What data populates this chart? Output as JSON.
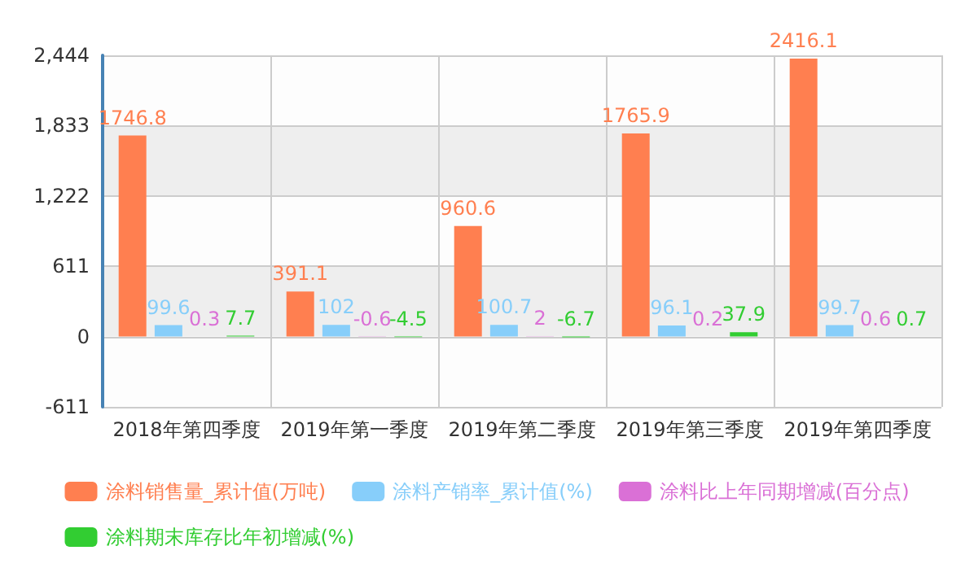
{
  "chart_data": {
    "type": "bar",
    "categories": [
      "2018年第四季度",
      "2019年第一季度",
      "2019年第二季度",
      "2019年第三季度",
      "2019年第四季度"
    ],
    "series": [
      {
        "name": "涂料销售量_累计值(万吨)",
        "color": "#ff7f50",
        "values": [
          1746.8,
          391.1,
          960.6,
          1765.9,
          2416.1
        ]
      },
      {
        "name": "涂料产销率_累计值(%)",
        "color": "#87cefa",
        "values": [
          99.6,
          102,
          100.7,
          96.1,
          99.7
        ]
      },
      {
        "name": "涂料比上年同期增减(百分点)",
        "color": "#da70d6",
        "values": [
          0.3,
          -0.6,
          2,
          0.2,
          0.6
        ]
      },
      {
        "name": "涂料期末库存比年初增减(%)",
        "color": "#32cd32",
        "values": [
          7.7,
          -4.5,
          -6.7,
          37.9,
          0.7
        ]
      }
    ],
    "ylim": [
      -611,
      2444
    ],
    "yticks": [
      {
        "value": -611,
        "label": "-611"
      },
      0,
      611,
      {
        "value": 1222,
        "label": "1,222"
      },
      {
        "value": 1833,
        "label": "1,833"
      },
      {
        "value": 2444,
        "label": "2,444"
      }
    ],
    "grid": true,
    "legend": "bottom",
    "data_labels": true
  }
}
